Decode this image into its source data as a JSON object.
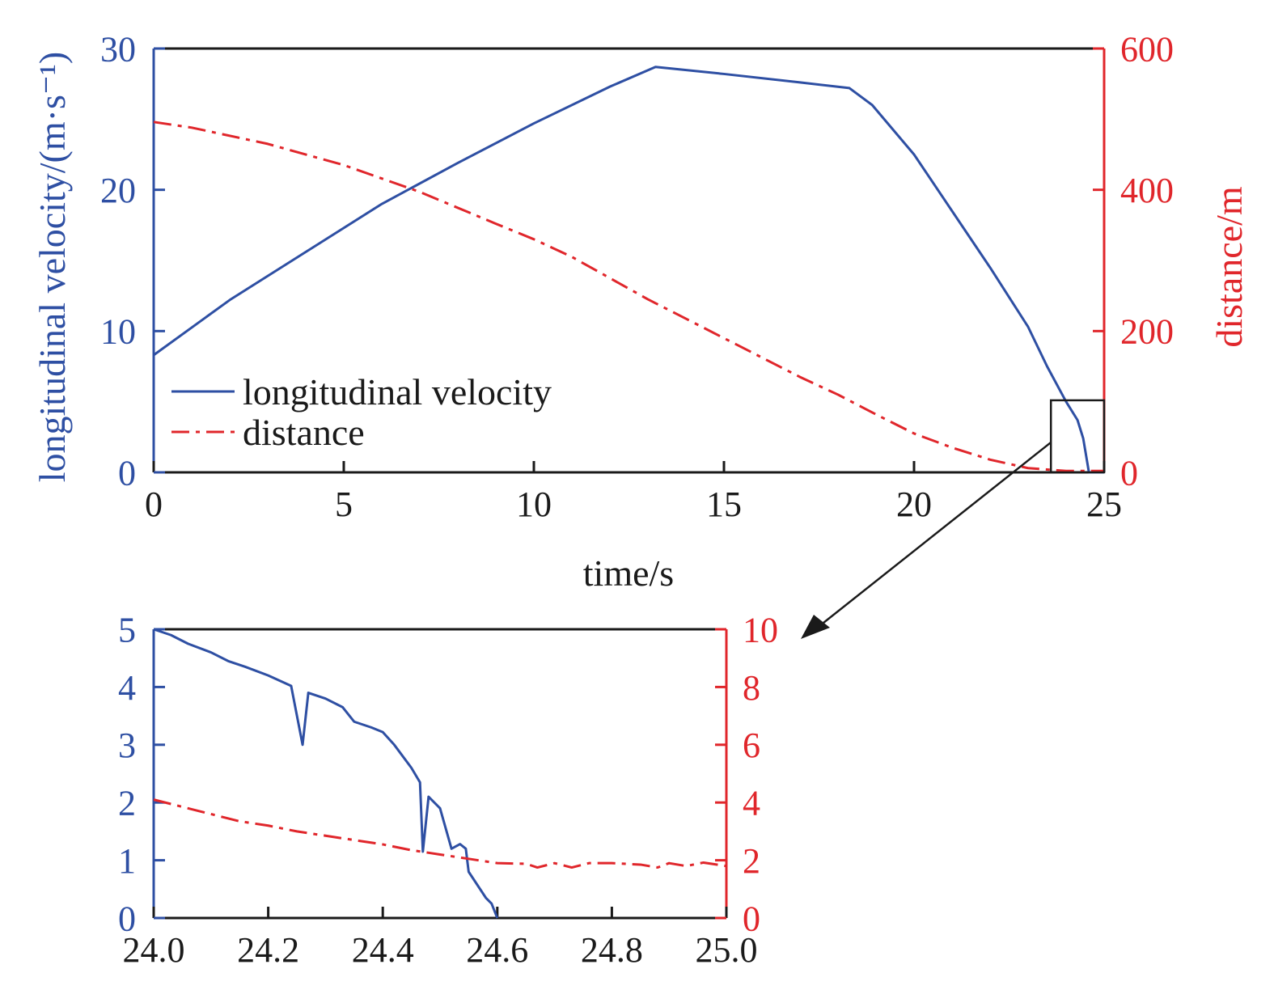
{
  "colors": {
    "velocity": "#2e4fa3",
    "distance": "#e0262b",
    "axis": "#1a1a1a"
  },
  "chart_data": [
    {
      "type": "line",
      "xlabel": "time/s",
      "ylabel": "longitudinal velocity/(m·s⁻¹)",
      "ylabel_right": "distance/m",
      "xlim": [
        0,
        25
      ],
      "ylim": [
        0,
        30
      ],
      "ylim_right": [
        0,
        600
      ],
      "x_ticks": [
        "0",
        "5",
        "10",
        "15",
        "20",
        "25"
      ],
      "y_ticks": [
        "0",
        "10",
        "20",
        "30"
      ],
      "y_ticks_right": [
        "0",
        "200",
        "400",
        "600"
      ],
      "legend_position": "lower-left",
      "grid": false,
      "series": [
        {
          "name": "longitudinal velocity",
          "axis": "left",
          "style": "solid",
          "x": [
            0,
            2,
            4,
            6,
            8,
            10,
            12,
            13.2,
            15,
            17,
            18.3,
            18.9,
            20,
            21,
            22,
            23,
            23.5,
            24,
            24.3,
            24.45,
            24.5,
            24.6,
            25
          ],
          "y": [
            8.3,
            12.2,
            15.6,
            19.0,
            21.9,
            24.7,
            27.3,
            28.7,
            28.2,
            27.6,
            27.2,
            26.0,
            22.5,
            18.5,
            14.5,
            10.3,
            7.5,
            5.0,
            3.7,
            2.4,
            1.6,
            0,
            0
          ]
        },
        {
          "name": "distance",
          "axis": "right",
          "style": "dash-dot",
          "x": [
            0,
            1,
            3,
            5,
            7,
            9,
            10,
            11,
            13,
            15,
            17,
            18,
            19,
            20,
            21,
            22,
            23,
            24,
            25
          ],
          "y": [
            496,
            488,
            465,
            435,
            397,
            352,
            330,
            305,
            245,
            190,
            135,
            110,
            82,
            55,
            35,
            18,
            6,
            2,
            2
          ]
        }
      ],
      "zoom_box": {
        "x": [
          23.6,
          25
        ],
        "y_right": [
          0,
          102
        ]
      }
    },
    {
      "type": "line",
      "xlim": [
        24.0,
        25.0
      ],
      "ylim": [
        0,
        5
      ],
      "ylim_right": [
        0,
        10
      ],
      "x_ticks": [
        "24.0",
        "24.2",
        "24.4",
        "24.6",
        "24.8",
        "25.0"
      ],
      "y_ticks": [
        "0",
        "1",
        "2",
        "3",
        "4",
        "5"
      ],
      "y_ticks_right": [
        "0",
        "2",
        "4",
        "6",
        "8",
        "10"
      ],
      "grid": false,
      "series": [
        {
          "axis": "left",
          "style": "solid",
          "x": [
            24.0,
            24.03,
            24.06,
            24.1,
            24.13,
            24.16,
            24.2,
            24.24,
            24.26,
            24.27,
            24.3,
            24.33,
            24.35,
            24.38,
            24.4,
            24.42,
            24.45,
            24.465,
            24.47,
            24.48,
            24.5,
            24.52,
            24.535,
            24.545,
            24.55,
            24.58,
            24.59,
            24.6
          ],
          "y": [
            5.0,
            4.9,
            4.75,
            4.6,
            4.45,
            4.35,
            4.2,
            4.02,
            3.0,
            3.9,
            3.8,
            3.65,
            3.4,
            3.3,
            3.22,
            3.0,
            2.6,
            2.35,
            1.15,
            2.1,
            1.9,
            1.2,
            1.28,
            1.2,
            0.8,
            0.35,
            0.25,
            0
          ]
        },
        {
          "axis": "right",
          "style": "dash-dot",
          "x": [
            24.0,
            24.05,
            24.1,
            24.15,
            24.2,
            24.25,
            24.3,
            24.35,
            24.4,
            24.45,
            24.5,
            24.55,
            24.6,
            24.65,
            24.67,
            24.7,
            24.73,
            24.76,
            24.8,
            24.85,
            24.88,
            24.9,
            24.93,
            24.96,
            25.0
          ],
          "y": [
            4.1,
            3.85,
            3.6,
            3.35,
            3.2,
            3.0,
            2.85,
            2.7,
            2.55,
            2.35,
            2.2,
            2.05,
            1.9,
            1.88,
            1.75,
            1.9,
            1.75,
            1.9,
            1.9,
            1.85,
            1.75,
            1.9,
            1.8,
            1.92,
            1.8
          ]
        }
      ]
    }
  ]
}
